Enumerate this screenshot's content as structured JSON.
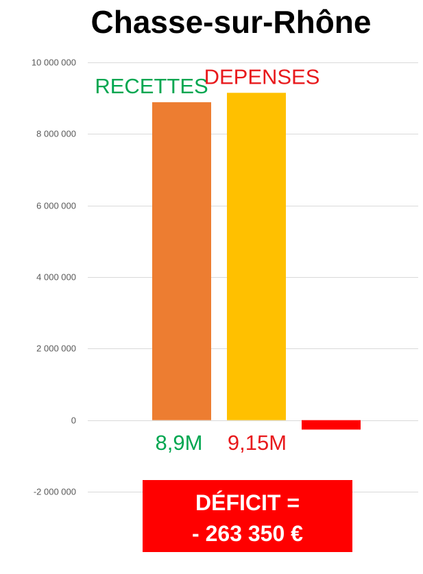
{
  "chart_data": {
    "type": "bar",
    "title": "Chasse-sur-Rhône",
    "ylim": [
      -2000000,
      10000000
    ],
    "yticks": [
      -2000000,
      0,
      2000000,
      4000000,
      6000000,
      8000000,
      10000000
    ],
    "ytick_labels": [
      "-2 000 000",
      "0",
      "2 000 000",
      "4 000 000",
      "6 000 000",
      "8 000 000",
      "10 000 000"
    ],
    "grid": true,
    "bars": [
      {
        "label": "RECETTES",
        "value": 8886650,
        "value_label": "8,9M",
        "color": "#ED7D31",
        "label_color": "#00A650"
      },
      {
        "label": "DEPENSES",
        "value": 9150000,
        "value_label": "9,15M",
        "color": "#FFC000",
        "label_color": "#E8191C"
      },
      {
        "label": "",
        "value": -263350,
        "value_label": "",
        "color": "#FF0000",
        "label_color": "#FF0000"
      }
    ],
    "annotation": {
      "line1": "DÉFICIT =",
      "line2": "- 263 350 €",
      "background": "#FF0000",
      "text_color": "#FFFFFF"
    }
  }
}
